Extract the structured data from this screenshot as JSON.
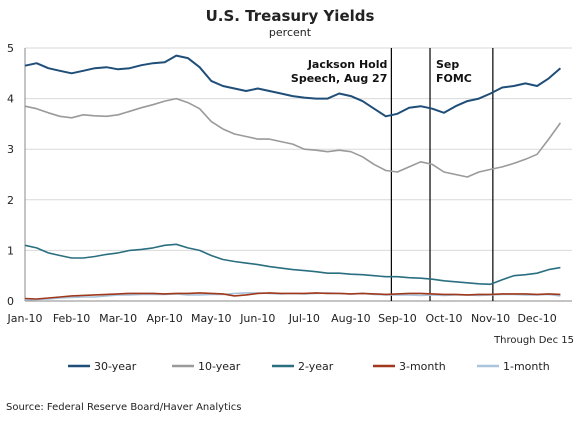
{
  "chart_data": {
    "type": "line",
    "title": "U.S. Treasury Yields",
    "subtitle": "percent",
    "note": "Through Dec 15",
    "source": "Source: Federal Reserve Board/Haver Analytics",
    "ylim": [
      0,
      5
    ],
    "yticks": [
      "0",
      "1",
      "2",
      "3",
      "4",
      "5"
    ],
    "categories": [
      "Jan-10",
      "Feb-10",
      "Mar-10",
      "Apr-10",
      "May-10",
      "Jun-10",
      "Jul-10",
      "Aug-10",
      "Sep-10",
      "Oct-10",
      "Nov-10",
      "Dec-10"
    ],
    "x_end": 11.5,
    "series": [
      {
        "name": "30-year",
        "color": "#1f4e79",
        "x": [
          0,
          0.25,
          0.5,
          0.75,
          1,
          1.25,
          1.5,
          1.75,
          2,
          2.25,
          2.5,
          2.75,
          3,
          3.25,
          3.5,
          3.75,
          4,
          4.25,
          4.5,
          4.75,
          5,
          5.25,
          5.5,
          5.75,
          6,
          6.25,
          6.5,
          6.75,
          7,
          7.25,
          7.5,
          7.75,
          8,
          8.25,
          8.5,
          8.75,
          9,
          9.25,
          9.5,
          9.75,
          10,
          10.25,
          10.5,
          10.75,
          11,
          11.25,
          11.5
        ],
        "y": [
          4.65,
          4.7,
          4.6,
          4.55,
          4.5,
          4.55,
          4.6,
          4.62,
          4.58,
          4.6,
          4.66,
          4.7,
          4.72,
          4.85,
          4.8,
          4.62,
          4.35,
          4.25,
          4.2,
          4.15,
          4.2,
          4.15,
          4.1,
          4.05,
          4.02,
          4.0,
          4.0,
          4.1,
          4.05,
          3.95,
          3.8,
          3.65,
          3.7,
          3.82,
          3.85,
          3.8,
          3.72,
          3.85,
          3.95,
          4.0,
          4.1,
          4.22,
          4.25,
          4.3,
          4.25,
          4.4,
          4.6
        ]
      },
      {
        "name": "10-year",
        "color": "#9a9a9a",
        "x": [
          0,
          0.25,
          0.5,
          0.75,
          1,
          1.25,
          1.5,
          1.75,
          2,
          2.25,
          2.5,
          2.75,
          3,
          3.25,
          3.5,
          3.75,
          4,
          4.25,
          4.5,
          4.75,
          5,
          5.25,
          5.5,
          5.75,
          6,
          6.25,
          6.5,
          6.75,
          7,
          7.25,
          7.5,
          7.75,
          8,
          8.25,
          8.5,
          8.75,
          9,
          9.25,
          9.5,
          9.75,
          10,
          10.25,
          10.5,
          10.75,
          11,
          11.25,
          11.5
        ],
        "y": [
          3.85,
          3.8,
          3.72,
          3.65,
          3.62,
          3.68,
          3.66,
          3.65,
          3.68,
          3.75,
          3.82,
          3.88,
          3.95,
          4.0,
          3.92,
          3.8,
          3.55,
          3.4,
          3.3,
          3.25,
          3.2,
          3.2,
          3.15,
          3.1,
          3.0,
          2.98,
          2.95,
          2.98,
          2.95,
          2.85,
          2.7,
          2.58,
          2.55,
          2.65,
          2.75,
          2.7,
          2.55,
          2.5,
          2.45,
          2.55,
          2.6,
          2.65,
          2.72,
          2.8,
          2.9,
          3.2,
          3.52
        ]
      },
      {
        "name": "2-year",
        "color": "#2a6f80",
        "x": [
          0,
          0.25,
          0.5,
          0.75,
          1,
          1.25,
          1.5,
          1.75,
          2,
          2.25,
          2.5,
          2.75,
          3,
          3.25,
          3.5,
          3.75,
          4,
          4.25,
          4.5,
          4.75,
          5,
          5.25,
          5.5,
          5.75,
          6,
          6.25,
          6.5,
          6.75,
          7,
          7.25,
          7.5,
          7.75,
          8,
          8.25,
          8.5,
          8.75,
          9,
          9.25,
          9.5,
          9.75,
          10,
          10.25,
          10.5,
          10.75,
          11,
          11.25,
          11.5
        ],
        "y": [
          1.1,
          1.05,
          0.95,
          0.9,
          0.85,
          0.85,
          0.88,
          0.92,
          0.95,
          1.0,
          1.02,
          1.05,
          1.1,
          1.12,
          1.05,
          1.0,
          0.9,
          0.82,
          0.78,
          0.75,
          0.72,
          0.68,
          0.65,
          0.62,
          0.6,
          0.58,
          0.55,
          0.55,
          0.53,
          0.52,
          0.5,
          0.48,
          0.48,
          0.46,
          0.45,
          0.43,
          0.4,
          0.38,
          0.36,
          0.34,
          0.33,
          0.42,
          0.5,
          0.52,
          0.55,
          0.62,
          0.66
        ]
      },
      {
        "name": "3-month",
        "color": "#a0391c",
        "x": [
          0,
          0.25,
          0.5,
          0.75,
          1,
          1.25,
          1.5,
          1.75,
          2,
          2.25,
          2.5,
          2.75,
          3,
          3.25,
          3.5,
          3.75,
          4,
          4.25,
          4.5,
          4.75,
          5,
          5.25,
          5.5,
          5.75,
          6,
          6.25,
          6.5,
          6.75,
          7,
          7.25,
          7.5,
          7.75,
          8,
          8.25,
          8.5,
          8.75,
          9,
          9.25,
          9.5,
          9.75,
          10,
          10.25,
          10.5,
          10.75,
          11,
          11.25,
          11.5
        ],
        "y": [
          0.05,
          0.04,
          0.06,
          0.08,
          0.1,
          0.11,
          0.12,
          0.13,
          0.14,
          0.15,
          0.15,
          0.15,
          0.14,
          0.15,
          0.15,
          0.16,
          0.15,
          0.14,
          0.1,
          0.12,
          0.15,
          0.16,
          0.15,
          0.15,
          0.15,
          0.16,
          0.15,
          0.15,
          0.14,
          0.15,
          0.14,
          0.13,
          0.14,
          0.15,
          0.15,
          0.14,
          0.13,
          0.13,
          0.12,
          0.13,
          0.13,
          0.14,
          0.14,
          0.14,
          0.13,
          0.14,
          0.13
        ]
      },
      {
        "name": "1-month",
        "color": "#a9c4dd",
        "x": [
          0,
          0.25,
          0.5,
          0.75,
          1,
          1.25,
          1.5,
          1.75,
          2,
          2.25,
          2.5,
          2.75,
          3,
          3.25,
          3.5,
          3.75,
          4,
          4.25,
          4.5,
          4.75,
          5,
          5.25,
          5.5,
          5.75,
          6,
          6.25,
          6.5,
          6.75,
          7,
          7.25,
          7.5,
          7.75,
          8,
          8.25,
          8.5,
          8.75,
          9,
          9.25,
          9.5,
          9.75,
          10,
          10.25,
          10.5,
          10.75,
          11,
          11.25,
          11.5
        ],
        "y": [
          0.02,
          0.03,
          0.04,
          0.06,
          0.07,
          0.08,
          0.08,
          0.1,
          0.12,
          0.12,
          0.13,
          0.13,
          0.13,
          0.14,
          0.12,
          0.12,
          0.13,
          0.13,
          0.15,
          0.16,
          0.16,
          0.15,
          0.14,
          0.15,
          0.14,
          0.15,
          0.16,
          0.15,
          0.14,
          0.15,
          0.13,
          0.12,
          0.12,
          0.12,
          0.11,
          0.12,
          0.11,
          0.12,
          0.12,
          0.11,
          0.12,
          0.13,
          0.13,
          0.12,
          0.12,
          0.13,
          0.1
        ]
      }
    ],
    "annotations": [
      {
        "lines": [
          "Jackson Hold",
          "Speech, Aug 27"
        ],
        "x": 7.87
      },
      {
        "lines": [
          "Sep",
          "FOMC"
        ],
        "x": 8.7
      },
      {
        "lines": [],
        "x": 10.05
      }
    ]
  }
}
